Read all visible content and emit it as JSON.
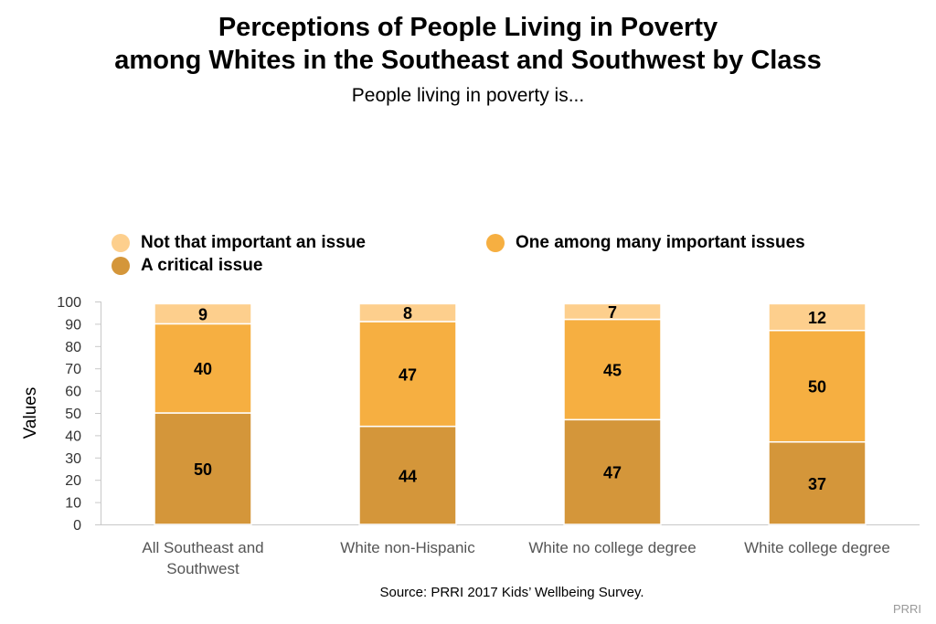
{
  "chart_data": {
    "type": "bar",
    "stacked": true,
    "title_line1": "Perceptions of People Living in Poverty",
    "title_line2": "among Whites in the Southeast and Southwest by Class",
    "subtitle": "People living in poverty is...",
    "ylabel": "Values",
    "xlabel": "",
    "ylim": [
      0,
      100
    ],
    "yticks": [
      0,
      10,
      20,
      30,
      40,
      50,
      60,
      70,
      80,
      90,
      100
    ],
    "grid": false,
    "legend_position": "top",
    "categories": [
      [
        "All Southeast and",
        "Southwest"
      ],
      [
        "White non-Hispanic"
      ],
      [
        "White no college degree"
      ],
      [
        "White college degree"
      ]
    ],
    "series": [
      {
        "name": "A critical issue",
        "color": "#D4963A",
        "values": [
          50,
          44,
          47,
          37
        ]
      },
      {
        "name": "One among many important issues",
        "color": "#F6AF41",
        "values": [
          40,
          47,
          45,
          50
        ]
      },
      {
        "name": "Not that important an issue",
        "color": "#FDCF8D",
        "values": [
          9,
          8,
          7,
          12
        ]
      }
    ]
  },
  "legend": [
    {
      "label": "Not that important an issue",
      "color": "#FDCF8D"
    },
    {
      "label": "One among many important issues",
      "color": "#F6AF41"
    },
    {
      "label": "A critical issue",
      "color": "#D4963A"
    }
  ],
  "source": "Source: PRRI 2017 Kids’ Wellbeing Survey.",
  "brand": "PRRI"
}
